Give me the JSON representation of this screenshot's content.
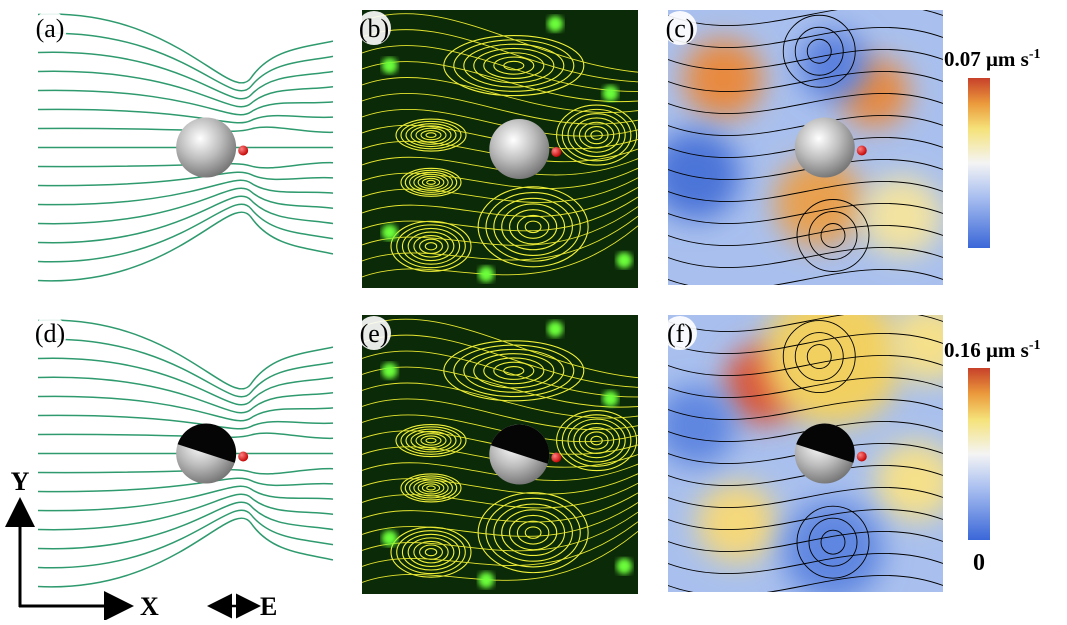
{
  "panels": {
    "labels": [
      "(a)",
      "(b)",
      "(c)",
      "(d)",
      "(e)",
      "(f)"
    ]
  },
  "colorbars": [
    {
      "max": "0.07 μm s",
      "max_sup": "-1"
    },
    {
      "max": "0.16 μm s",
      "max_sup": "-1",
      "min": "0"
    }
  ],
  "axes": {
    "y": "Y",
    "x": "X",
    "field": "E"
  }
}
